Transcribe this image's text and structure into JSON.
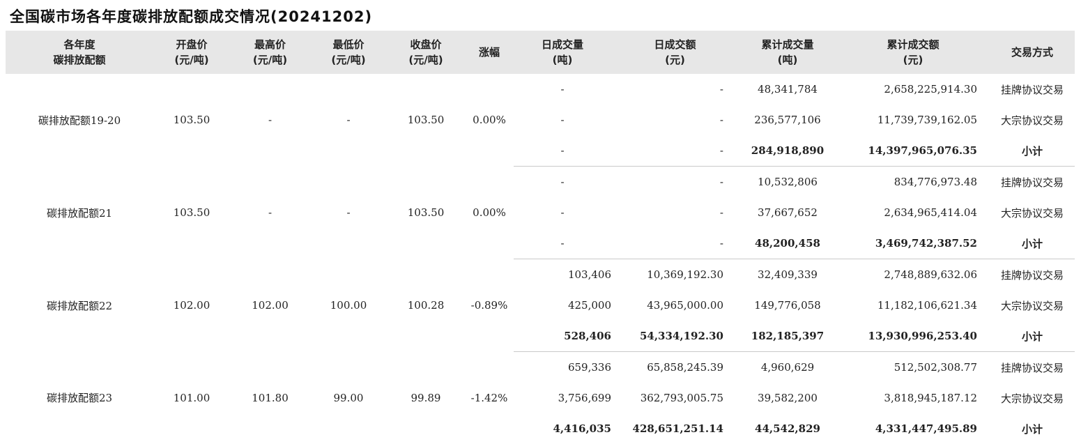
{
  "title": "全国碳市场各年度碳排放配额成交情况(20241202)",
  "headers": {
    "year_l1": "各年度",
    "year_l2": "碳排放配额",
    "open_l1": "开盘价",
    "open_l2": "(元/吨)",
    "high_l1": "最高价",
    "high_l2": "(元/吨)",
    "low_l1": "最低价",
    "low_l2": "(元/吨)",
    "close_l1": "收盘价",
    "close_l2": "(元/吨)",
    "change": "涨幅",
    "dvol_l1": "日成交量",
    "dvol_l2": "(吨)",
    "damt_l1": "日成交额",
    "damt_l2": "(元)",
    "cvol_l1": "累计成交量",
    "cvol_l2": "(吨)",
    "camt_l1": "累计成交额",
    "camt_l2": "(元)",
    "method": "交易方式"
  },
  "groups": [
    {
      "name": "碳排放配额19-20",
      "open": "103.50",
      "high": "-",
      "low": "-",
      "close": "103.50",
      "change": "0.00%",
      "rows": [
        {
          "dvol": "-",
          "damt": "-",
          "cvol": "48,341,784",
          "camt": "2,658,225,914.30",
          "method": "挂牌协议交易"
        },
        {
          "dvol": "-",
          "damt": "-",
          "cvol": "236,577,106",
          "camt": "11,739,739,162.05",
          "method": "大宗协议交易"
        },
        {
          "dvol": "-",
          "damt": "-",
          "cvol": "284,918,890",
          "camt": "14,397,965,076.35",
          "method": "小计"
        }
      ]
    },
    {
      "name": "碳排放配额21",
      "open": "103.50",
      "high": "-",
      "low": "-",
      "close": "103.50",
      "change": "0.00%",
      "rows": [
        {
          "dvol": "-",
          "damt": "-",
          "cvol": "10,532,806",
          "camt": "834,776,973.48",
          "method": "挂牌协议交易"
        },
        {
          "dvol": "-",
          "damt": "-",
          "cvol": "37,667,652",
          "camt": "2,634,965,414.04",
          "method": "大宗协议交易"
        },
        {
          "dvol": "-",
          "damt": "-",
          "cvol": "48,200,458",
          "camt": "3,469,742,387.52",
          "method": "小计"
        }
      ]
    },
    {
      "name": "碳排放配额22",
      "open": "102.00",
      "high": "102.00",
      "low": "100.00",
      "close": "100.28",
      "change": "-0.89%",
      "rows": [
        {
          "dvol": "103,406",
          "damt": "10,369,192.30",
          "cvol": "32,409,339",
          "camt": "2,748,889,632.06",
          "method": "挂牌协议交易"
        },
        {
          "dvol": "425,000",
          "damt": "43,965,000.00",
          "cvol": "149,776,058",
          "camt": "11,182,106,621.34",
          "method": "大宗协议交易"
        },
        {
          "dvol": "528,406",
          "damt": "54,334,192.30",
          "cvol": "182,185,397",
          "camt": "13,930,996,253.40",
          "method": "小计"
        }
      ]
    },
    {
      "name": "碳排放配额23",
      "open": "101.00",
      "high": "101.80",
      "low": "99.00",
      "close": "99.89",
      "change": "-1.42%",
      "rows": [
        {
          "dvol": "659,336",
          "damt": "65,858,245.39",
          "cvol": "4,960,629",
          "camt": "512,502,308.77",
          "method": "挂牌协议交易"
        },
        {
          "dvol": "3,756,699",
          "damt": "362,793,005.75",
          "cvol": "39,582,200",
          "camt": "3,818,945,187.12",
          "method": "大宗协议交易"
        },
        {
          "dvol": "4,416,035",
          "damt": "428,651,251.14",
          "cvol": "44,542,829",
          "camt": "4,331,447,495.89",
          "method": "小计"
        }
      ]
    }
  ]
}
